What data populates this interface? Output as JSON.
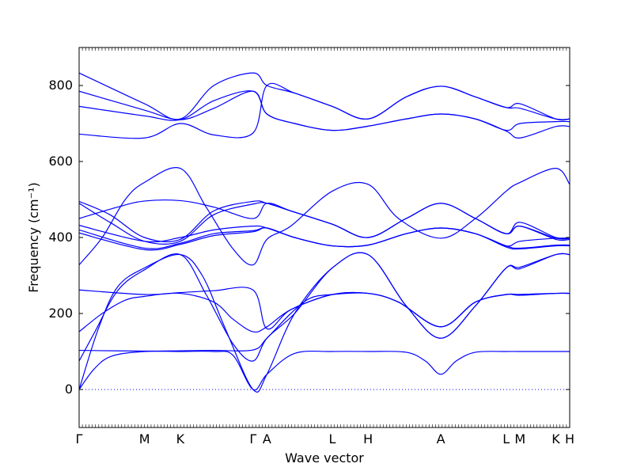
{
  "chart_data": {
    "type": "line",
    "xlabel": "Wave vector",
    "ylabel": "Frequency (cm⁻¹)",
    "ylim": [
      -100,
      900
    ],
    "yticks": [
      0,
      200,
      400,
      600,
      800
    ],
    "grid": false,
    "legend": "none",
    "colors": {
      "bands": "#0000ff",
      "zero_line": "#0000ff",
      "axes": "#000000"
    },
    "kpoints": [
      {
        "label": "Γ",
        "x": 0
      },
      {
        "label": "M",
        "x": 1.7
      },
      {
        "label": "K",
        "x": 2.63
      },
      {
        "label": "Γ",
        "x": 4.52
      },
      {
        "label": "A",
        "x": 4.88
      },
      {
        "label": "L",
        "x": 6.58
      },
      {
        "label": "H",
        "x": 7.51
      },
      {
        "label": "A",
        "x": 9.4
      },
      {
        "label": "L",
        "x": 11.1
      },
      {
        "label": "M",
        "x": 11.46
      },
      {
        "label": "K",
        "x": 12.39
      },
      {
        "label": "H",
        "x": 12.75
      }
    ],
    "series": [
      {
        "values": [
          [
            0,
            0
          ],
          [
            0.4,
            55
          ],
          [
            0.85,
            88
          ],
          [
            1.7,
            100
          ],
          [
            2.63,
            100
          ],
          [
            3.5,
            100
          ],
          [
            4.0,
            90
          ],
          [
            4.52,
            0
          ],
          [
            4.88,
            40
          ],
          [
            5.6,
            95
          ],
          [
            6.58,
            100
          ],
          [
            7.51,
            100
          ],
          [
            8.5,
            98
          ],
          [
            9.0,
            75
          ],
          [
            9.4,
            40
          ],
          [
            9.8,
            75
          ],
          [
            10.3,
            98
          ],
          [
            11.1,
            100
          ],
          [
            11.46,
            100
          ],
          [
            12.39,
            100
          ],
          [
            12.75,
            100
          ]
        ]
      },
      {
        "values": [
          [
            0,
            0
          ],
          [
            0.5,
            160
          ],
          [
            1.0,
            270
          ],
          [
            1.7,
            320
          ],
          [
            2.63,
            355
          ],
          [
            3.2,
            300
          ],
          [
            3.8,
            160
          ],
          [
            4.52,
            0
          ],
          [
            4.88,
            40
          ],
          [
            5.6,
            200
          ],
          [
            6.58,
            320
          ],
          [
            7.51,
            355
          ],
          [
            8.5,
            220
          ],
          [
            9.4,
            135
          ],
          [
            10.3,
            220
          ],
          [
            11.1,
            320
          ],
          [
            11.46,
            322
          ],
          [
            12.39,
            355
          ],
          [
            12.75,
            355
          ]
        ]
      },
      {
        "values": [
          [
            0,
            75
          ],
          [
            0.4,
            150
          ],
          [
            1.0,
            260
          ],
          [
            1.7,
            315
          ],
          [
            2.63,
            355
          ],
          [
            3.3,
            250
          ],
          [
            4.0,
            120
          ],
          [
            4.52,
            75
          ],
          [
            4.88,
            135
          ],
          [
            5.6,
            200
          ],
          [
            6.58,
            320
          ],
          [
            7.51,
            355
          ],
          [
            8.5,
            220
          ],
          [
            9.4,
            135
          ],
          [
            10.3,
            220
          ],
          [
            11.1,
            320
          ],
          [
            11.46,
            318
          ],
          [
            12.39,
            355
          ],
          [
            12.75,
            355
          ]
        ]
      },
      {
        "values": [
          [
            0,
            103
          ],
          [
            1.7,
            101
          ],
          [
            2.63,
            102
          ],
          [
            3.5,
            103
          ],
          [
            4.52,
            104
          ],
          [
            4.88,
            135
          ],
          [
            5.5,
            200
          ],
          [
            6.0,
            240
          ],
          [
            6.58,
            250
          ],
          [
            7.51,
            253
          ],
          [
            8.3,
            230
          ],
          [
            9.4,
            165
          ],
          [
            10.3,
            230
          ],
          [
            11.1,
            250
          ],
          [
            11.46,
            250
          ],
          [
            12.39,
            253
          ],
          [
            12.75,
            253
          ]
        ]
      },
      {
        "values": [
          [
            0,
            152
          ],
          [
            0.6,
            200
          ],
          [
            1.2,
            235
          ],
          [
            1.7,
            245
          ],
          [
            2.63,
            253
          ],
          [
            3.5,
            230
          ],
          [
            4.0,
            185
          ],
          [
            4.52,
            152
          ],
          [
            4.88,
            165
          ],
          [
            5.5,
            210
          ],
          [
            6.58,
            250
          ],
          [
            7.51,
            253
          ],
          [
            8.3,
            230
          ],
          [
            9.4,
            165
          ],
          [
            10.3,
            230
          ],
          [
            11.1,
            250
          ],
          [
            11.46,
            248
          ],
          [
            12.39,
            253
          ],
          [
            12.75,
            253
          ]
        ]
      },
      {
        "values": [
          [
            0,
            262
          ],
          [
            1.7,
            250
          ],
          [
            2.63,
            255
          ],
          [
            3.5,
            260
          ],
          [
            4.52,
            262
          ],
          [
            4.88,
            160
          ],
          [
            5.5,
            210
          ],
          [
            6.58,
            250
          ],
          [
            7.51,
            253
          ],
          [
            8.3,
            230
          ],
          [
            9.4,
            165
          ],
          [
            10.3,
            230
          ],
          [
            11.1,
            250
          ],
          [
            11.46,
            250
          ],
          [
            12.39,
            253
          ],
          [
            12.75,
            253
          ]
        ]
      },
      {
        "values": [
          [
            0,
            328
          ],
          [
            0.6,
            400
          ],
          [
            1.2,
            500
          ],
          [
            1.7,
            545
          ],
          [
            2.63,
            582
          ],
          [
            3.3,
            480
          ],
          [
            4.0,
            370
          ],
          [
            4.52,
            328
          ],
          [
            4.88,
            395
          ],
          [
            5.5,
            430
          ],
          [
            6.58,
            522
          ],
          [
            7.51,
            540
          ],
          [
            8.3,
            450
          ],
          [
            9.4,
            398
          ],
          [
            10.3,
            450
          ],
          [
            11.1,
            522
          ],
          [
            11.46,
            545
          ],
          [
            12.39,
            582
          ],
          [
            12.75,
            540
          ]
        ]
      },
      {
        "values": [
          [
            0,
            450
          ],
          [
            1.0,
            480
          ],
          [
            1.7,
            496
          ],
          [
            2.63,
            497
          ],
          [
            3.5,
            480
          ],
          [
            4.52,
            450
          ],
          [
            4.88,
            490
          ],
          [
            5.5,
            470
          ],
          [
            6.58,
            435
          ],
          [
            7.51,
            400
          ],
          [
            8.5,
            450
          ],
          [
            9.4,
            490
          ],
          [
            10.3,
            450
          ],
          [
            11.1,
            410
          ],
          [
            11.46,
            430
          ],
          [
            12.39,
            395
          ],
          [
            12.75,
            395
          ]
        ]
      },
      {
        "values": [
          [
            0,
            495
          ],
          [
            0.8,
            460
          ],
          [
            1.7,
            400
          ],
          [
            2.63,
            395
          ],
          [
            3.5,
            470
          ],
          [
            4.52,
            495
          ],
          [
            4.88,
            490
          ],
          [
            5.5,
            470
          ],
          [
            6.58,
            435
          ],
          [
            7.51,
            400
          ],
          [
            8.5,
            450
          ],
          [
            9.4,
            490
          ],
          [
            10.3,
            450
          ],
          [
            11.1,
            410
          ],
          [
            11.46,
            440
          ],
          [
            12.39,
            400
          ],
          [
            12.75,
            400
          ]
        ]
      },
      {
        "values": [
          [
            0,
            490
          ],
          [
            0.8,
            440
          ],
          [
            1.7,
            390
          ],
          [
            2.63,
            390
          ],
          [
            3.5,
            460
          ],
          [
            4.52,
            488
          ],
          [
            4.88,
            490
          ],
          [
            5.5,
            470
          ],
          [
            6.58,
            435
          ],
          [
            7.51,
            400
          ],
          [
            8.5,
            450
          ],
          [
            9.4,
            490
          ],
          [
            10.3,
            450
          ],
          [
            11.1,
            410
          ],
          [
            11.46,
            430
          ],
          [
            12.39,
            398
          ],
          [
            12.75,
            398
          ]
        ]
      },
      {
        "values": [
          [
            0,
            432
          ],
          [
            1.7,
            390
          ],
          [
            2.63,
            400
          ],
          [
            3.5,
            420
          ],
          [
            4.52,
            430
          ],
          [
            4.88,
            425
          ],
          [
            5.6,
            400
          ],
          [
            6.58,
            378
          ],
          [
            7.51,
            380
          ],
          [
            8.5,
            410
          ],
          [
            9.4,
            425
          ],
          [
            10.3,
            410
          ],
          [
            11.1,
            378
          ],
          [
            11.46,
            390
          ],
          [
            12.39,
            398
          ],
          [
            12.75,
            398
          ]
        ]
      },
      {
        "values": [
          [
            0,
            420
          ],
          [
            1.7,
            372
          ],
          [
            2.63,
            385
          ],
          [
            3.5,
            410
          ],
          [
            4.52,
            418
          ],
          [
            4.88,
            425
          ],
          [
            5.6,
            400
          ],
          [
            6.58,
            378
          ],
          [
            7.51,
            380
          ],
          [
            8.5,
            410
          ],
          [
            9.4,
            425
          ],
          [
            10.3,
            410
          ],
          [
            11.1,
            378
          ],
          [
            11.46,
            372
          ],
          [
            12.39,
            380
          ],
          [
            12.75,
            380
          ]
        ]
      },
      {
        "values": [
          [
            0,
            412
          ],
          [
            1.7,
            368
          ],
          [
            2.63,
            382
          ],
          [
            3.5,
            405
          ],
          [
            4.52,
            415
          ],
          [
            4.88,
            425
          ],
          [
            5.6,
            400
          ],
          [
            6.58,
            378
          ],
          [
            7.51,
            380
          ],
          [
            8.5,
            410
          ],
          [
            9.4,
            425
          ],
          [
            10.3,
            410
          ],
          [
            11.1,
            375
          ],
          [
            11.46,
            370
          ],
          [
            12.39,
            378
          ],
          [
            12.75,
            378
          ]
        ]
      },
      {
        "values": [
          [
            0,
            672
          ],
          [
            1.7,
            662
          ],
          [
            2.63,
            700
          ],
          [
            3.5,
            670
          ],
          [
            4.52,
            675
          ],
          [
            4.88,
            800
          ],
          [
            5.6,
            780
          ],
          [
            6.58,
            745
          ],
          [
            7.51,
            712
          ],
          [
            8.5,
            770
          ],
          [
            9.4,
            798
          ],
          [
            10.3,
            770
          ],
          [
            11.1,
            742
          ],
          [
            11.46,
            752
          ],
          [
            12.39,
            712
          ],
          [
            12.75,
            712
          ]
        ]
      },
      {
        "values": [
          [
            0,
            745
          ],
          [
            1.7,
            720
          ],
          [
            2.63,
            710
          ],
          [
            3.5,
            760
          ],
          [
            4.52,
            785
          ],
          [
            4.88,
            725
          ],
          [
            5.6,
            700
          ],
          [
            6.58,
            682
          ],
          [
            7.51,
            693
          ],
          [
            8.5,
            712
          ],
          [
            9.4,
            725
          ],
          [
            10.3,
            712
          ],
          [
            11.1,
            682
          ],
          [
            11.46,
            700
          ],
          [
            12.39,
            705
          ],
          [
            12.75,
            705
          ]
        ]
      },
      {
        "values": [
          [
            0,
            785
          ],
          [
            1.7,
            735
          ],
          [
            2.63,
            710
          ],
          [
            3.5,
            740
          ],
          [
            4.52,
            785
          ],
          [
            4.88,
            725
          ],
          [
            5.6,
            700
          ],
          [
            6.58,
            682
          ],
          [
            7.51,
            693
          ],
          [
            8.5,
            712
          ],
          [
            9.4,
            725
          ],
          [
            10.3,
            712
          ],
          [
            11.1,
            680
          ],
          [
            11.46,
            662
          ],
          [
            12.39,
            692
          ],
          [
            12.75,
            692
          ]
        ]
      },
      {
        "values": [
          [
            0,
            833
          ],
          [
            1.7,
            752
          ],
          [
            2.63,
            712
          ],
          [
            3.5,
            800
          ],
          [
            4.52,
            833
          ],
          [
            4.88,
            800
          ],
          [
            5.6,
            780
          ],
          [
            6.58,
            745
          ],
          [
            7.51,
            712
          ],
          [
            8.5,
            770
          ],
          [
            9.4,
            798
          ],
          [
            10.3,
            770
          ],
          [
            11.1,
            742
          ],
          [
            11.46,
            740
          ],
          [
            12.39,
            712
          ],
          [
            12.75,
            712
          ]
        ]
      }
    ]
  }
}
